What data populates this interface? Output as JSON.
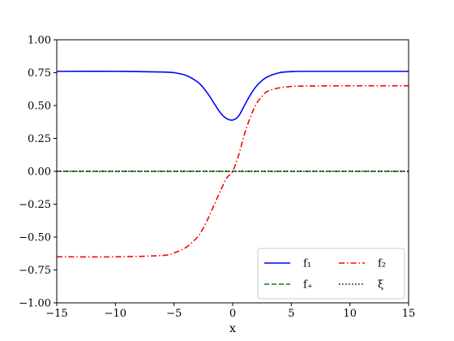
{
  "chart_data": {
    "type": "line",
    "title": "",
    "xlabel": "x",
    "ylabel": "",
    "xlim": [
      -15,
      15
    ],
    "ylim": [
      -1.0,
      1.0
    ],
    "grid": false,
    "legend_position": "bottom-right",
    "legend_columns": 2,
    "x_ticks": [
      -15,
      -10,
      -5,
      0,
      5,
      10,
      15
    ],
    "x_tick_labels": [
      "−15",
      "−10",
      "−5",
      "0",
      "5",
      "10",
      "15"
    ],
    "y_ticks": [
      -1.0,
      -0.75,
      -0.5,
      -0.25,
      0.0,
      0.25,
      0.5,
      0.75,
      1.0
    ],
    "y_tick_labels": [
      "−1.00",
      "−0.75",
      "−0.50",
      "−0.25",
      "0.00",
      "0.25",
      "0.50",
      "0.75",
      "1.00"
    ],
    "x": [
      -15,
      -10,
      -6,
      -5,
      -4,
      -3,
      -2.5,
      -2,
      -1.5,
      -1,
      -0.5,
      0,
      0.5,
      1,
      1.5,
      2,
      2.5,
      3,
      4,
      5,
      6,
      10,
      15
    ],
    "series": [
      {
        "name": "f₁",
        "color": "#0000ff",
        "style": "solid",
        "values": [
          0.76,
          0.76,
          0.755,
          0.75,
          0.73,
          0.68,
          0.635,
          0.575,
          0.505,
          0.44,
          0.4,
          0.39,
          0.42,
          0.5,
          0.58,
          0.645,
          0.69,
          0.72,
          0.75,
          0.758,
          0.76,
          0.76,
          0.76
        ]
      },
      {
        "name": "f₂",
        "color": "#ff0000",
        "style": "dashdot",
        "values": [
          -0.65,
          -0.65,
          -0.64,
          -0.62,
          -0.58,
          -0.5,
          -0.43,
          -0.34,
          -0.24,
          -0.14,
          -0.05,
          0.0,
          0.12,
          0.28,
          0.41,
          0.51,
          0.57,
          0.61,
          0.635,
          0.645,
          0.648,
          0.65,
          0.65
        ]
      },
      {
        "name": "f₊",
        "color": "#008000",
        "style": "dashed",
        "values": [
          0,
          0,
          0,
          0,
          0,
          0,
          0,
          0,
          0,
          0,
          0,
          0,
          0,
          0,
          0,
          0,
          0,
          0,
          0,
          0,
          0,
          0,
          0
        ]
      },
      {
        "name": "ξ",
        "color": "#000000",
        "style": "dotted",
        "values": [
          0,
          0,
          0,
          0,
          0,
          0,
          0,
          0,
          0,
          0,
          0,
          0,
          0,
          0,
          0,
          0,
          0,
          0,
          0,
          0,
          0,
          0,
          0
        ]
      }
    ]
  }
}
